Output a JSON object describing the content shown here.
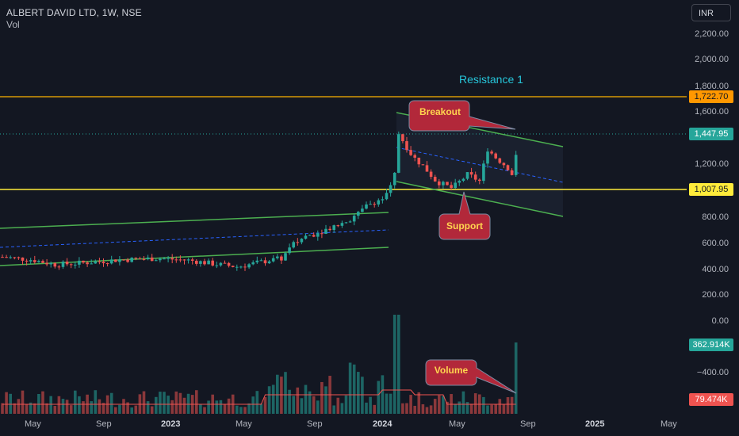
{
  "header": {
    "symbol_line": "ALBERT DAVID LTD, 1W, NSE",
    "volume_label": "Vol"
  },
  "currency_button": {
    "label": "INR"
  },
  "price_axis": {
    "ticks": [
      "2,200.00",
      "2,000.00",
      "1,800.00",
      "1,600.00",
      "1,200.00",
      "800.00",
      "600.00",
      "400.00",
      "200.00",
      "0.00",
      "−400.00"
    ]
  },
  "time_axis": {
    "ticks": [
      {
        "label": "May",
        "bold": false
      },
      {
        "label": "Sep",
        "bold": false
      },
      {
        "label": "2023",
        "bold": true
      },
      {
        "label": "May",
        "bold": false
      },
      {
        "label": "Sep",
        "bold": false
      },
      {
        "label": "2024",
        "bold": true
      },
      {
        "label": "May",
        "bold": false
      },
      {
        "label": "Sep",
        "bold": false
      },
      {
        "label": "2025",
        "bold": true
      },
      {
        "label": "May",
        "bold": false
      }
    ]
  },
  "badges": {
    "resistance_price": "1,722.70",
    "last_price": "1,447.95",
    "support_price": "1,007.95",
    "last_volume": "362.914K",
    "volume_ma": "79.474K"
  },
  "annotations": {
    "resistance_label": "Resistance 1",
    "breakout_label": "Breakout",
    "support_label": "Support",
    "volume_label": "Volume"
  },
  "colors": {
    "background": "#131722",
    "up": "#26a69a",
    "down": "#ef5350",
    "resistance_line": "#ffb300",
    "support_line": "#ffeb3b",
    "channel_line": "#4caf50",
    "mid_line": "#2962ff",
    "callout_fill": "#b2283a",
    "callout_text": "#ffd54f",
    "resistance_text": "#26c6da"
  },
  "chart_data": {
    "type": "candlestick",
    "title": "ALBERT DAVID LTD, 1W, NSE",
    "y_unit": "INR",
    "ylim": [
      -500,
      2300
    ],
    "horizontal_levels": {
      "resistance": 1722.7,
      "support": 1007.95
    },
    "last_close": 1447.95,
    "last_volume_k": 362.914,
    "volume_ma_k": 79.474,
    "grid": false,
    "legend": "none"
  }
}
